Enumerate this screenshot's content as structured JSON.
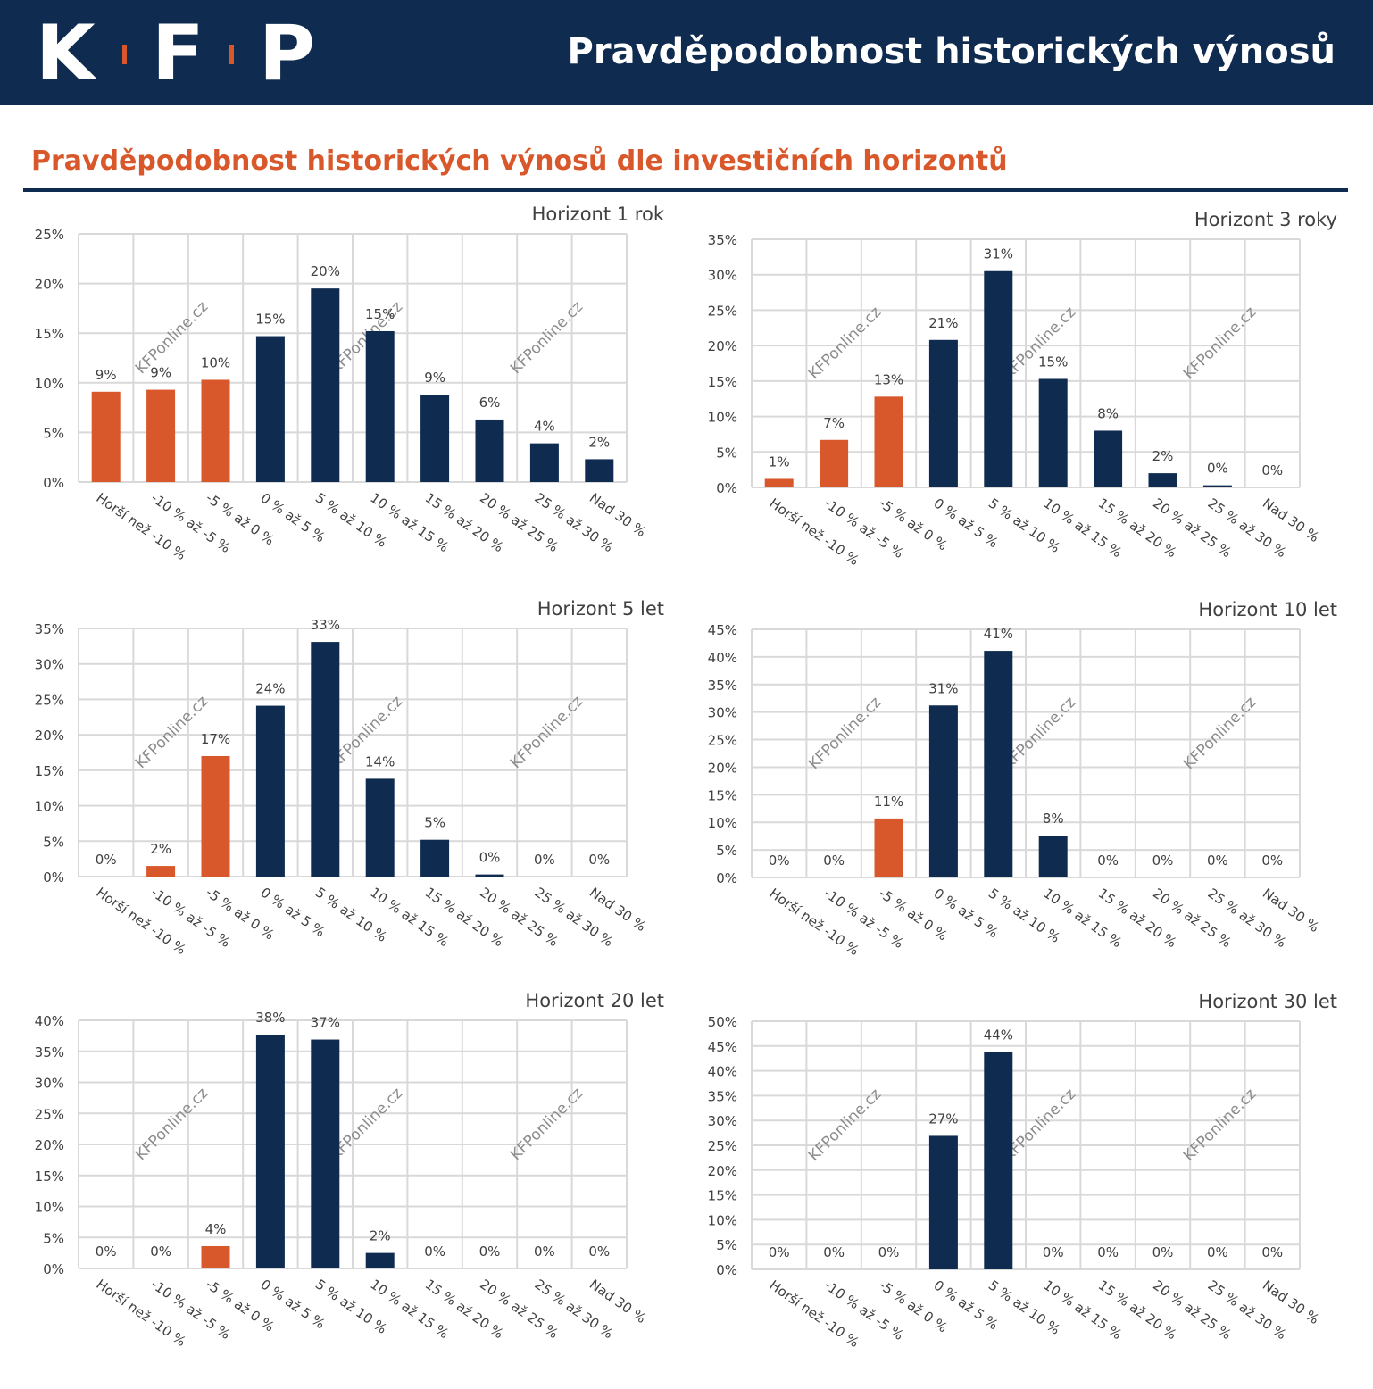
{
  "header": {
    "logo_letters": [
      "K",
      "F",
      "P"
    ],
    "title": "Pravděpodobnost historických výnosů"
  },
  "subtitle": "Pravděpodobnost historických výnosů dle investičních horizontů",
  "watermark": "KFPonline.cz",
  "colors": {
    "navy": "#0f2b50",
    "orange": "#d9582b",
    "grid": "#d9d9d9",
    "text": "#404040"
  },
  "chart_data": [
    {
      "type": "bar",
      "title": "Horizont 1 rok",
      "categories": [
        "Horší než -10 %",
        "-10 % až -5 %",
        "-5 % až 0 %",
        "0 % až 5 %",
        "5 % až 10 %",
        "10 % až 15 %",
        "15 % až 20 %",
        "20 % až 25 %",
        "25 % až 30 %",
        "Nad 30 %"
      ],
      "values": [
        9.1,
        9.3,
        10.3,
        14.7,
        19.5,
        15.2,
        8.8,
        6.3,
        3.9,
        2.3
      ],
      "labels": [
        "9%",
        "9%",
        "10%",
        "15%",
        "20%",
        "15%",
        "9%",
        "6%",
        "4%",
        "2%"
      ],
      "colors": [
        "orange",
        "orange",
        "orange",
        "navy",
        "navy",
        "navy",
        "navy",
        "navy",
        "navy",
        "navy"
      ],
      "yticks": [
        "0%",
        "5%",
        "10%",
        "15%",
        "20%",
        "25%"
      ],
      "ylim": [
        0,
        25
      ],
      "grid": true
    },
    {
      "type": "bar",
      "title": "Horizont 3 roky",
      "categories": [
        "Horší než -10 %",
        "-10 % až -5 %",
        "-5 % až 0 %",
        "0 % až 5 %",
        "5 % až 10 %",
        "10 % až 15 %",
        "15 % až 20 %",
        "20 % až 25 %",
        "25 % až 30 %",
        "Nad 30 %"
      ],
      "values": [
        1.2,
        6.7,
        12.8,
        20.8,
        30.5,
        15.3,
        8.0,
        2.0,
        0.3,
        0.0
      ],
      "labels": [
        "1%",
        "7%",
        "13%",
        "21%",
        "31%",
        "15%",
        "8%",
        "2%",
        "0%",
        "0%"
      ],
      "colors": [
        "orange",
        "orange",
        "orange",
        "navy",
        "navy",
        "navy",
        "navy",
        "navy",
        "navy",
        "navy"
      ],
      "yticks": [
        "0%",
        "5%",
        "10%",
        "15%",
        "20%",
        "25%",
        "30%",
        "35%"
      ],
      "ylim": [
        0,
        35
      ],
      "grid": true
    },
    {
      "type": "bar",
      "title": "Horizont 5 let",
      "categories": [
        "Horší než -10 %",
        "-10 % až -5 %",
        "-5 % až 0 %",
        "0 % až 5 %",
        "5 % až 10 %",
        "10 % až 15 %",
        "15 % až 20 %",
        "20 % až 25 %",
        "25 % až 30 %",
        "Nad 30 %"
      ],
      "values": [
        0.0,
        1.5,
        17.0,
        24.1,
        33.1,
        13.8,
        5.2,
        0.3,
        0.0,
        0.0
      ],
      "labels": [
        "0%",
        "2%",
        "17%",
        "24%",
        "33%",
        "14%",
        "5%",
        "0%",
        "0%",
        "0%"
      ],
      "colors": [
        "orange",
        "orange",
        "orange",
        "navy",
        "navy",
        "navy",
        "navy",
        "navy",
        "navy",
        "navy"
      ],
      "yticks": [
        "0%",
        "5%",
        "10%",
        "15%",
        "20%",
        "25%",
        "30%",
        "35%"
      ],
      "ylim": [
        0,
        35
      ],
      "grid": true
    },
    {
      "type": "bar",
      "title": "Horizont 10 let",
      "categories": [
        "Horší než -10 %",
        "-10 % až -5 %",
        "-5 % až 0 %",
        "0 % až 5 %",
        "5 % až 10 %",
        "10 % až 15 %",
        "15 % až 20 %",
        "20 % až 25 %",
        "25 % až 30 %",
        "Nad 30 %"
      ],
      "values": [
        0.0,
        0.0,
        10.7,
        31.2,
        41.1,
        7.6,
        0.0,
        0.0,
        0.0,
        0.0
      ],
      "labels": [
        "0%",
        "0%",
        "11%",
        "31%",
        "41%",
        "8%",
        "0%",
        "0%",
        "0%",
        "0%"
      ],
      "colors": [
        "orange",
        "orange",
        "orange",
        "navy",
        "navy",
        "navy",
        "navy",
        "navy",
        "navy",
        "navy"
      ],
      "yticks": [
        "0%",
        "5%",
        "10%",
        "15%",
        "20%",
        "25%",
        "30%",
        "35%",
        "40%",
        "45%"
      ],
      "ylim": [
        0,
        45
      ],
      "grid": true
    },
    {
      "type": "bar",
      "title": "Horizont 20 let",
      "categories": [
        "Horší než -10 %",
        "-10 % až -5 %",
        "-5 % až 0 %",
        "0 % až 5 %",
        "5 % až 10 %",
        "10 % až 15 %",
        "15 % až 20 %",
        "20 % až 25 %",
        "25 % až 30 %",
        "Nad 30 %"
      ],
      "values": [
        0.0,
        0.0,
        3.6,
        37.7,
        36.9,
        2.5,
        0.0,
        0.0,
        0.0,
        0.0
      ],
      "labels": [
        "0%",
        "0%",
        "4%",
        "38%",
        "37%",
        "2%",
        "0%",
        "0%",
        "0%",
        "0%"
      ],
      "colors": [
        "orange",
        "orange",
        "orange",
        "navy",
        "navy",
        "navy",
        "navy",
        "navy",
        "navy",
        "navy"
      ],
      "yticks": [
        "0%",
        "5%",
        "10%",
        "15%",
        "20%",
        "25%",
        "30%",
        "35%",
        "40%"
      ],
      "ylim": [
        0,
        40
      ],
      "grid": true
    },
    {
      "type": "bar",
      "title": "Horizont 30 let",
      "categories": [
        "Horší než -10 %",
        "-10 % až -5 %",
        "-5 % až 0 %",
        "0 % až 5 %",
        "5 % až 10 %",
        "10 % až 15 %",
        "15 % až 20 %",
        "20 % až 25 %",
        "25 % až 30 %",
        "Nad 30 %"
      ],
      "values": [
        0.0,
        0.0,
        0.0,
        26.9,
        43.8,
        0.0,
        0.0,
        0.0,
        0.0,
        0.0
      ],
      "labels": [
        "0%",
        "0%",
        "0%",
        "27%",
        "44%",
        "0%",
        "0%",
        "0%",
        "0%",
        "0%"
      ],
      "colors": [
        "orange",
        "orange",
        "orange",
        "navy",
        "navy",
        "navy",
        "navy",
        "navy",
        "navy",
        "navy"
      ],
      "yticks": [
        "0%",
        "5%",
        "10%",
        "15%",
        "20%",
        "25%",
        "30%",
        "35%",
        "40%",
        "45%",
        "50%"
      ],
      "ylim": [
        0,
        50
      ],
      "grid": true
    }
  ]
}
